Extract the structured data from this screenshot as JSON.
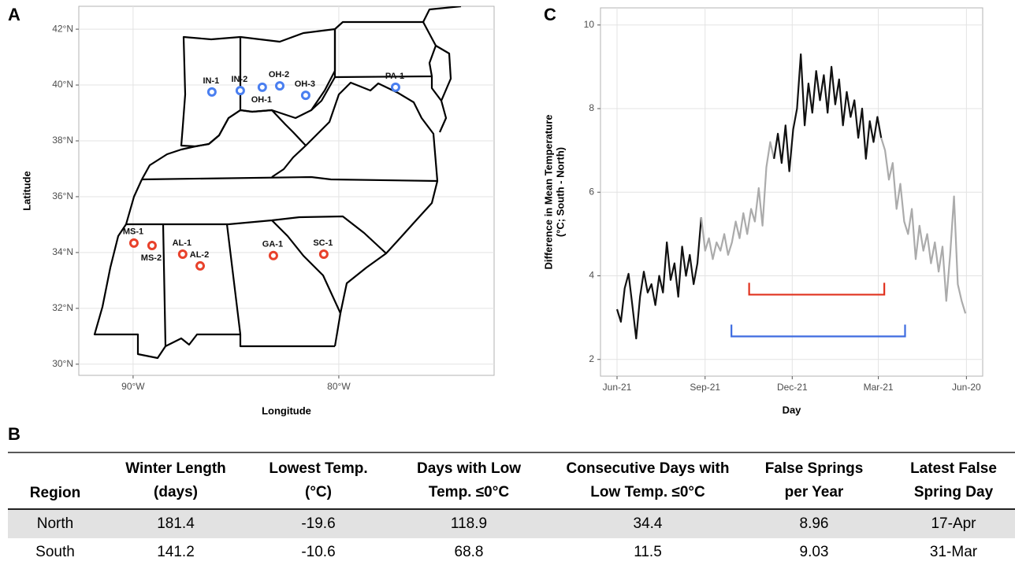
{
  "chart_data": [
    {
      "type": "scatter",
      "label": "A",
      "xlabel": "Longitude",
      "ylabel": "Latitude",
      "xlim": [
        -92.64,
        -72.45
      ],
      "ylim": [
        29.6,
        42.82
      ],
      "xticks": [
        {
          "value": -90,
          "label": "90°W"
        },
        {
          "value": -80,
          "label": "80°W"
        }
      ],
      "yticks": [
        {
          "value": 30,
          "label": "30°N"
        },
        {
          "value": 32,
          "label": "32°N"
        },
        {
          "value": 34,
          "label": "34°N"
        },
        {
          "value": 36,
          "label": "36°N"
        },
        {
          "value": 38,
          "label": "38°N"
        },
        {
          "value": 40,
          "label": "40°N"
        },
        {
          "value": 42,
          "label": "42°N"
        }
      ],
      "grid": true,
      "series": [
        {
          "color": "#4a7ff0",
          "labels": [
            "IN-1",
            "IN-2",
            "OH-1",
            "OH-2",
            "OH-3",
            "PA-1"
          ],
          "x": [
            -86.17,
            -84.79,
            -83.72,
            -82.87,
            -81.61,
            -77.24
          ],
          "values": [
            39.75,
            39.8,
            39.92,
            39.97,
            39.63,
            39.92
          ]
        },
        {
          "color": "#e8412b",
          "labels": [
            "MS-1",
            "MS-2",
            "AL-1",
            "AL-2",
            "GA-1",
            "SC-1"
          ],
          "x": [
            -89.96,
            -89.08,
            -87.59,
            -86.74,
            -83.18,
            -80.73
          ],
          "values": [
            34.34,
            34.25,
            33.94,
            33.52,
            33.89,
            33.94
          ]
        }
      ]
    },
    {
      "type": "line",
      "label": "C",
      "xlabel": "Day",
      "ylabel": [
        "Difference in Mean Temperature",
        "(°C; South - North)"
      ],
      "xlim": [
        -17.3,
        382
      ],
      "ylim": [
        1.6,
        10.41
      ],
      "xticks": [
        {
          "value": 0,
          "label": "Jun-21"
        },
        {
          "value": 92,
          "label": "Sep-21"
        },
        {
          "value": 183,
          "label": "Dec-21"
        },
        {
          "value": 273,
          "label": "Mar-21"
        },
        {
          "value": 365,
          "label": "Jun-20"
        }
      ],
      "yticks": [
        2,
        4,
        6,
        8,
        10
      ],
      "grid": true,
      "series": [
        {
          "color": "#111111",
          "x": [
            0,
            4,
            8,
            12,
            16,
            20,
            24,
            28,
            32,
            36,
            40,
            44,
            48,
            52,
            56,
            60,
            64,
            68,
            72,
            76,
            80,
            84,
            88
          ],
          "values": [
            3.2,
            2.9,
            3.7,
            4.05,
            3.3,
            2.5,
            3.5,
            4.1,
            3.6,
            3.8,
            3.3,
            4.0,
            3.6,
            4.8,
            3.9,
            4.3,
            3.5,
            4.7,
            4.0,
            4.5,
            3.8,
            4.3,
            5.4
          ]
        },
        {
          "color": "#ababab",
          "x": [
            88,
            92,
            96,
            100,
            104,
            108,
            112,
            116,
            120,
            124,
            128,
            132,
            136,
            140,
            144,
            148,
            152,
            156,
            160,
            164
          ],
          "values": [
            5.4,
            4.6,
            4.9,
            4.4,
            4.8,
            4.6,
            5.0,
            4.5,
            4.8,
            5.3,
            4.9,
            5.5,
            5.0,
            5.6,
            5.3,
            6.1,
            5.2,
            6.6,
            7.2,
            6.8
          ]
        },
        {
          "color": "#111111",
          "x": [
            164,
            168,
            172,
            176,
            180,
            184,
            188,
            192,
            196,
            200,
            204,
            208,
            212,
            216,
            220,
            224,
            228,
            232,
            236,
            240,
            244,
            248,
            252,
            256,
            260,
            264,
            268,
            272,
            276
          ],
          "values": [
            6.8,
            7.4,
            6.7,
            7.6,
            6.5,
            7.5,
            8.0,
            9.3,
            7.6,
            8.6,
            7.9,
            8.9,
            8.2,
            8.8,
            7.9,
            9.0,
            8.1,
            8.7,
            7.6,
            8.4,
            7.8,
            8.2,
            7.3,
            8.0,
            6.8,
            7.7,
            7.2,
            7.8,
            7.3
          ]
        },
        {
          "color": "#ababab",
          "x": [
            276,
            280,
            284,
            288,
            292,
            296,
            300,
            304,
            308,
            312,
            316,
            320,
            324,
            328,
            332,
            336,
            340,
            344,
            348,
            352,
            356,
            360,
            364
          ],
          "values": [
            7.3,
            7.0,
            6.3,
            6.7,
            5.6,
            6.2,
            5.3,
            5.0,
            5.6,
            4.4,
            5.2,
            4.6,
            5.0,
            4.3,
            4.8,
            4.1,
            4.7,
            3.4,
            4.5,
            5.9,
            3.8,
            3.4,
            3.1
          ]
        }
      ],
      "ranges": [
        {
          "color": "#e0321e",
          "start": 138,
          "end": 279.2,
          "y": 3.55
        },
        {
          "color": "#3d6be0",
          "start": 119.5,
          "end": 300.9,
          "y": 2.55
        }
      ]
    }
  ],
  "table": {
    "label": "B",
    "columns": [
      [
        "Region"
      ],
      [
        "Winter Length",
        "(days)"
      ],
      [
        "Lowest Temp.",
        "(°C)"
      ],
      [
        "Days with Low",
        "Temp. ≤0°C"
      ],
      [
        "Consecutive Days with",
        "Low Temp. ≤0°C"
      ],
      [
        "False Springs",
        "per Year"
      ],
      [
        "Latest False",
        "Spring Day"
      ]
    ],
    "rows": [
      [
        "North",
        181.4,
        -19.6,
        118.9,
        34.4,
        8.96,
        "17-Apr"
      ],
      [
        "South",
        141.2,
        -10.6,
        68.8,
        11.5,
        9.03,
        "31-Mar"
      ]
    ]
  }
}
